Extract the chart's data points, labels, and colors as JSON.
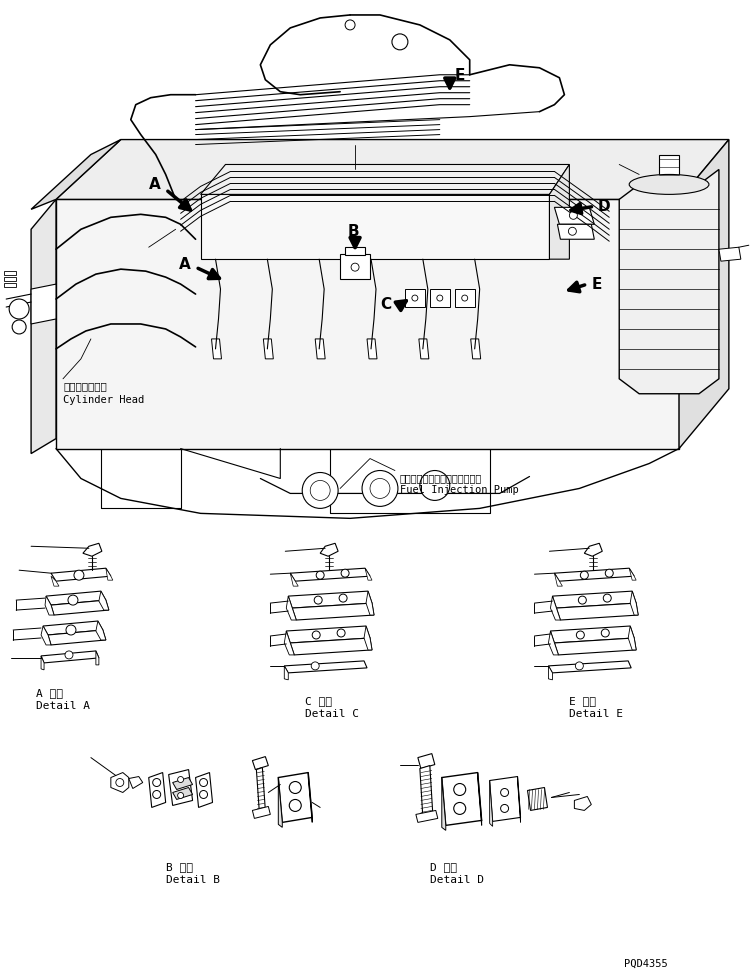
{
  "bg_color": "#ffffff",
  "line_color": "#000000",
  "fig_width": 7.51,
  "fig_height": 9.71,
  "dpi": 100,
  "watermark": "PQD4355",
  "labels": {
    "A_detail_jp": "A 詳細",
    "A_detail_en": "Detail A",
    "B_detail_jp": "B 詳細",
    "B_detail_en": "Detail B",
    "C_detail_jp": "C 詳細",
    "C_detail_en": "Detail C",
    "D_detail_jp": "D 詳細",
    "D_detail_en": "Detail D",
    "E_detail_jp": "E 詳細",
    "E_detail_en": "Detail E",
    "cylinder_jp": "シリンダヘッド",
    "cylinder_en": "Cylinder Head",
    "pump_jp": "フェルインジェクションポンプ",
    "pump_en": "Fuel Injection Pump"
  }
}
